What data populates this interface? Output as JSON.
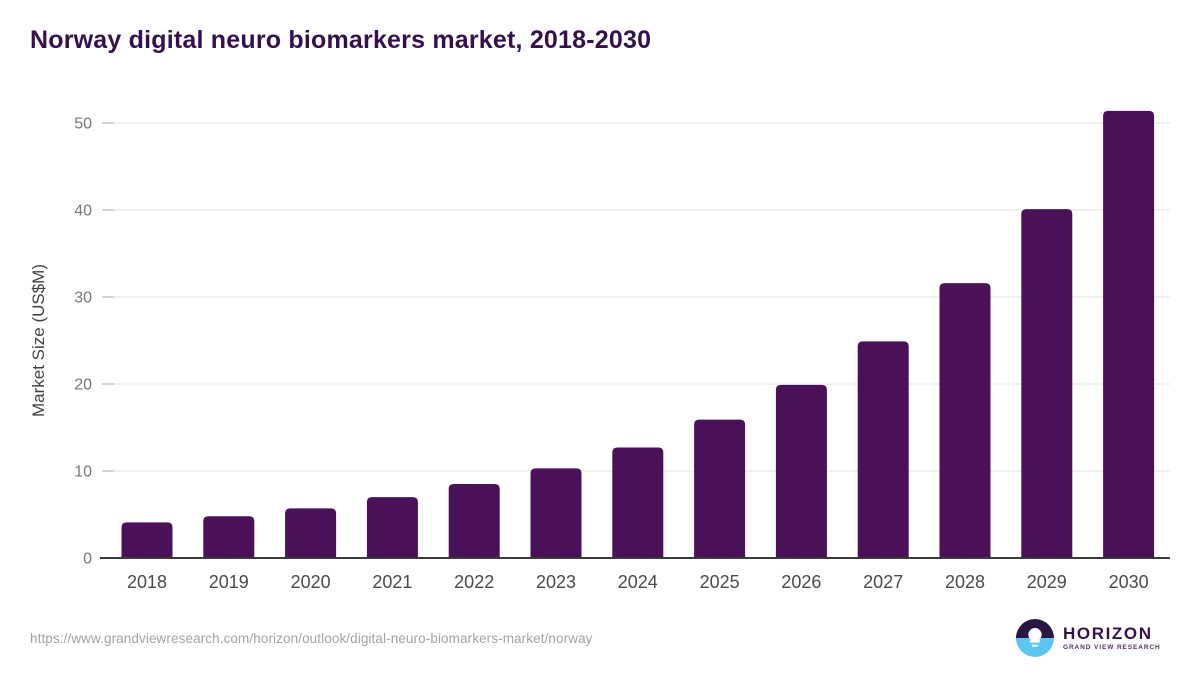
{
  "title": "Norway digital neuro biomarkers market, 2018-2030",
  "source_url": "https://www.grandviewresearch.com/horizon/outlook/digital-neuro-biomarkers-market/norway",
  "logo": {
    "name": "HORIZON",
    "subtitle": "GRAND VIEW RESEARCH"
  },
  "colors": {
    "bar": "#4A1158",
    "title_text": "#35104D",
    "gridline": "#ECECEC",
    "tick": "#C9C9C9",
    "axis_line": "#3A3A3A",
    "y_tick_text": "#767676",
    "x_tick_text": "#4A4A4A",
    "logo_purple": "#2A1642",
    "logo_blue": "#5BC6F0"
  },
  "chart_data": {
    "type": "bar",
    "title": "Norway digital neuro biomarkers market, 2018-2030",
    "categories": [
      "2018",
      "2019",
      "2020",
      "2021",
      "2022",
      "2023",
      "2024",
      "2025",
      "2026",
      "2027",
      "2028",
      "2029",
      "2030"
    ],
    "values": [
      4.1,
      4.8,
      5.7,
      7.0,
      8.5,
      10.3,
      12.7,
      15.9,
      19.9,
      24.9,
      31.6,
      40.1,
      51.4
    ],
    "xlabel": "",
    "ylabel": "Market Size (US$M)",
    "ylim": [
      0,
      50
    ],
    "yticks": [
      0,
      10,
      20,
      30,
      40,
      50
    ],
    "grid": true,
    "legend": "none",
    "bar_color": "#4A1158"
  }
}
